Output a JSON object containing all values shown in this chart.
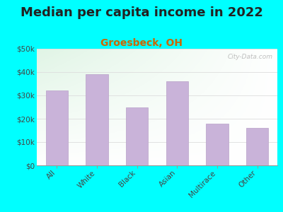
{
  "title": "Median per capita income in 2022",
  "subtitle": "Groesbeck, OH",
  "subtitle_color": "#cc6600",
  "title_color": "#222222",
  "background_color": "#00FFFF",
  "categories": [
    "All",
    "White",
    "Black",
    "Asian",
    "Multirace",
    "Other"
  ],
  "values": [
    32000,
    39000,
    25000,
    36000,
    18000,
    16000
  ],
  "bar_color": "#c9b3d9",
  "bar_edge_color": "#b8a0c8",
  "ylim": [
    0,
    50000
  ],
  "yticks": [
    0,
    10000,
    20000,
    30000,
    40000,
    50000
  ],
  "ytick_labels": [
    "$0",
    "$10k",
    "$20k",
    "$30k",
    "$40k",
    "$50k"
  ],
  "grid_color": "#dddddd",
  "watermark": "City-Data.com",
  "plot_bg_colors": [
    "#ddf0dd",
    "#f5fff5",
    "#ffffff"
  ],
  "title_fontsize": 13,
  "subtitle_fontsize": 10,
  "tick_fontsize": 7.5
}
